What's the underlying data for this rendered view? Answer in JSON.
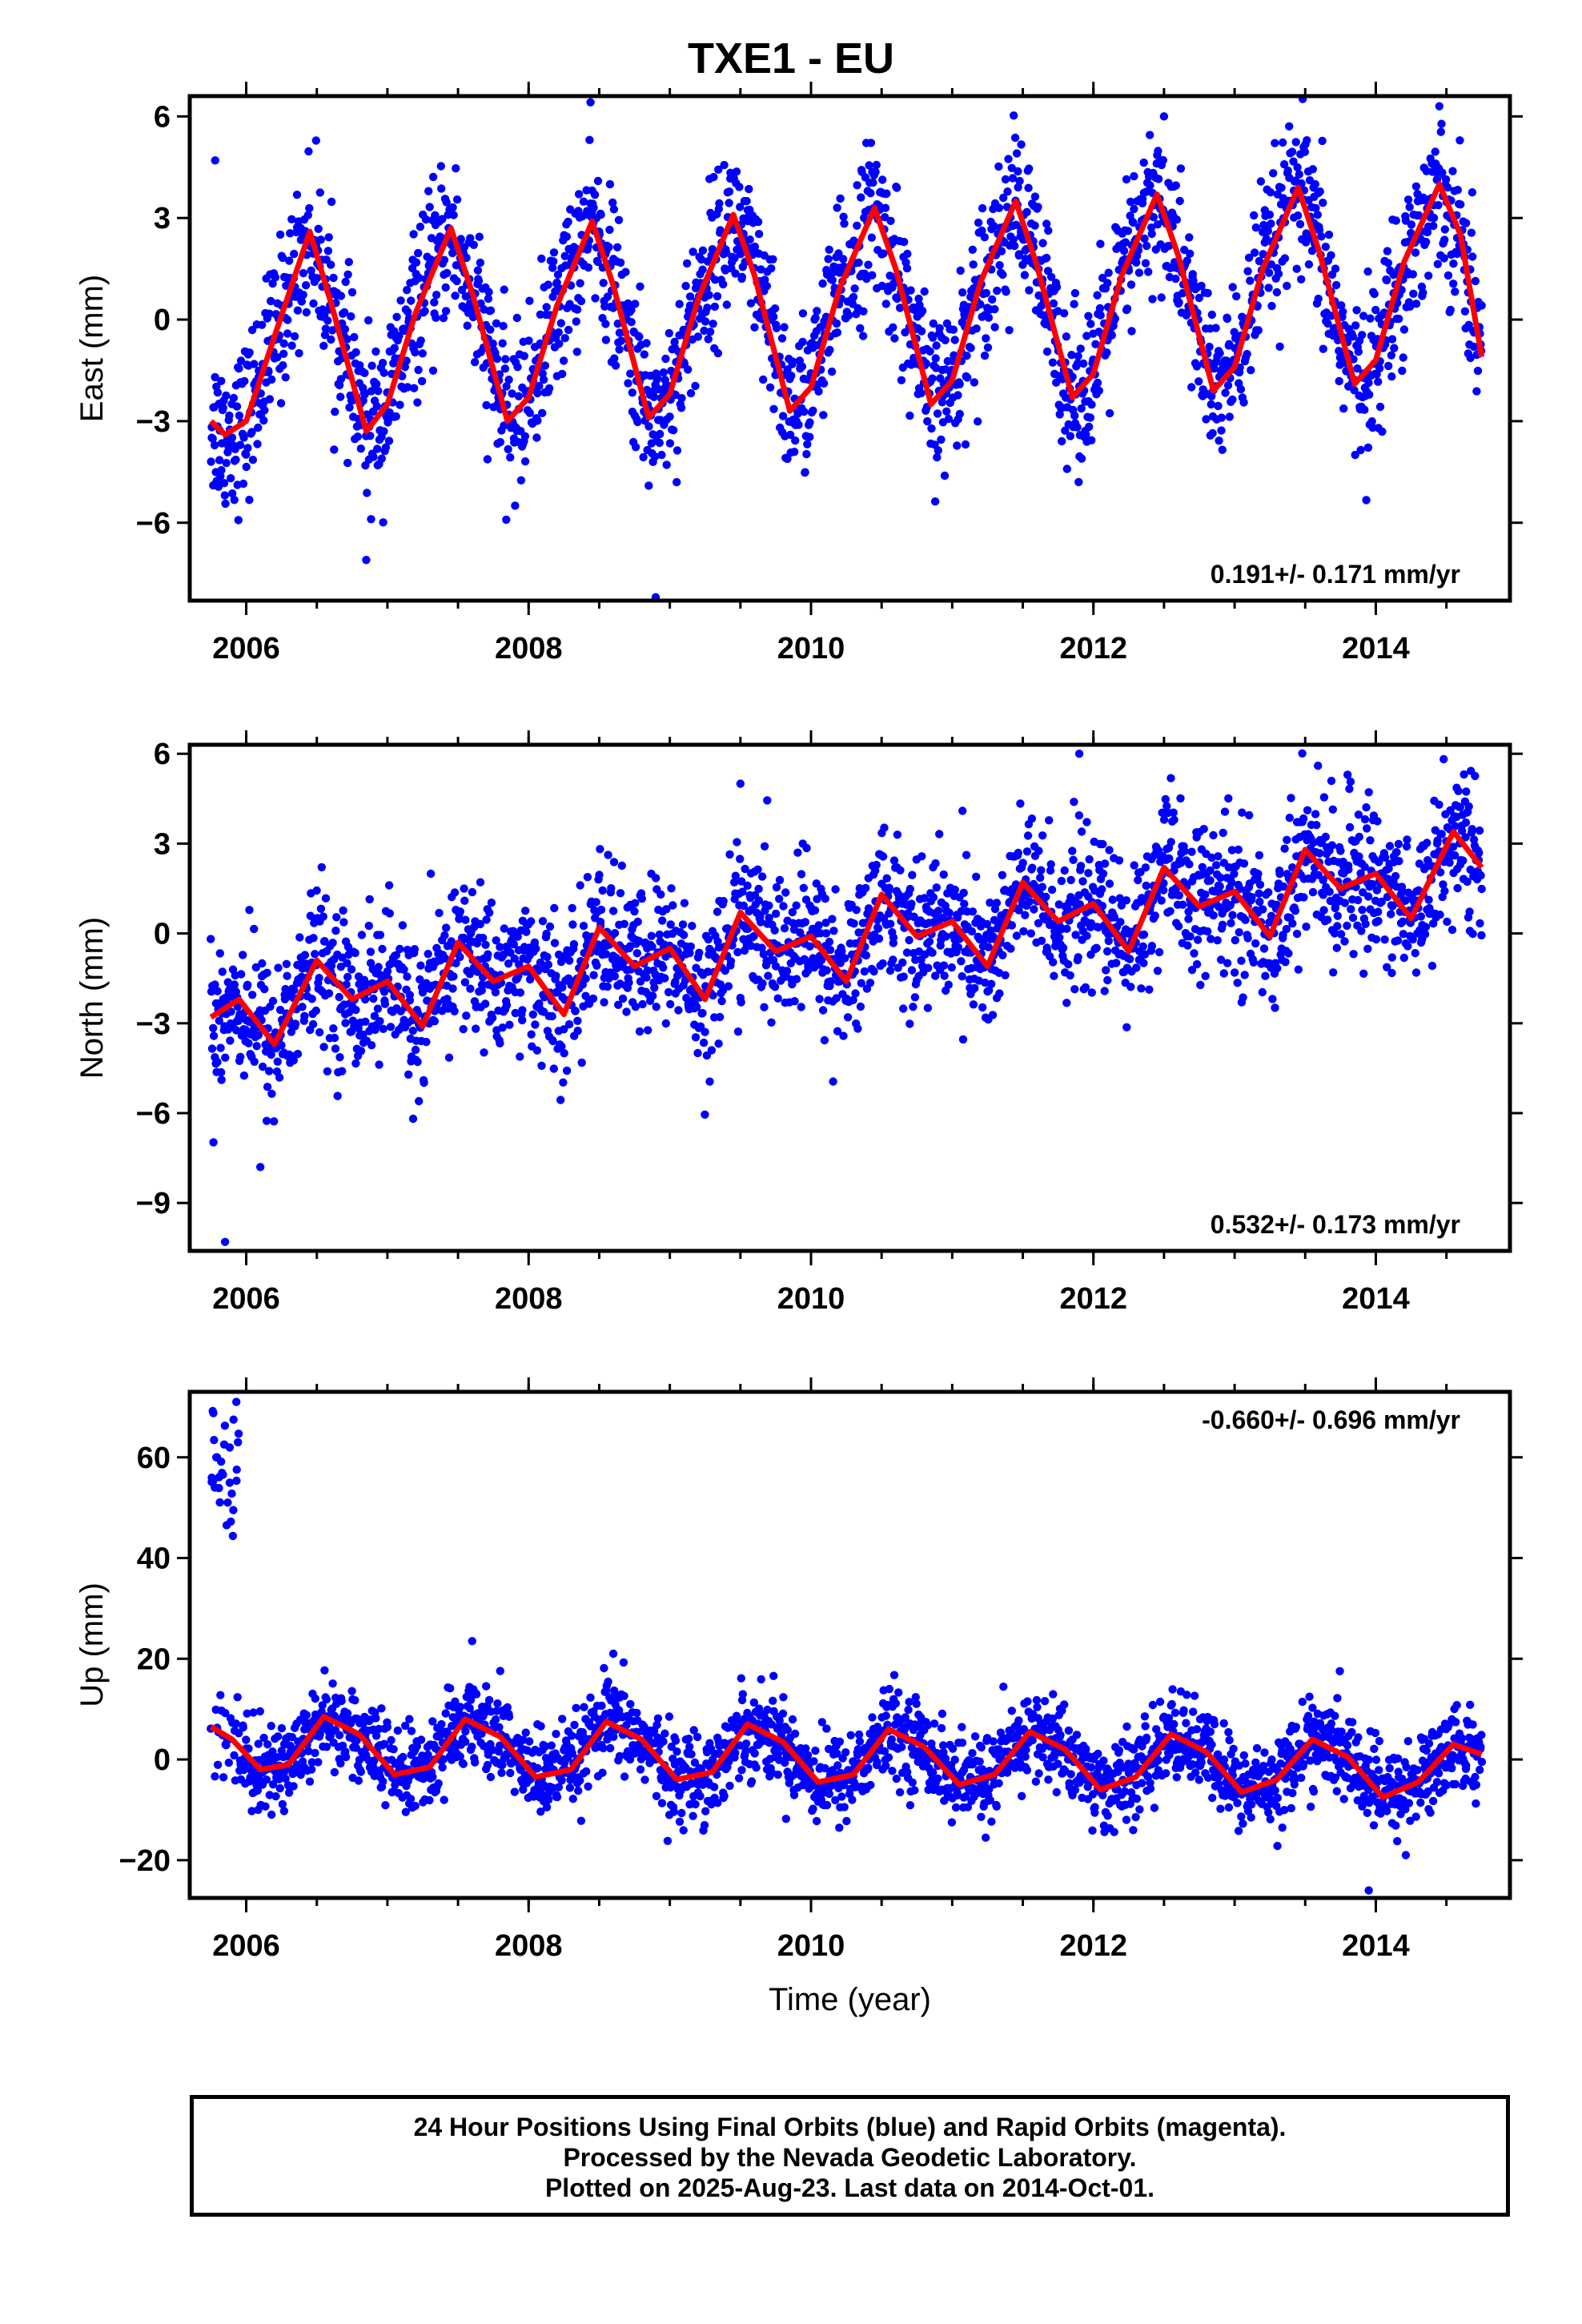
{
  "title": "TXE1 - EU",
  "colors": {
    "points": "#0000ff",
    "fit": "#ff0000",
    "frame": "#000000"
  },
  "chart_data": [
    {
      "type": "scatter",
      "component": "East",
      "ylabel": "East (mm)",
      "xlabel": "",
      "xlim": [
        2005.6,
        2014.95
      ],
      "ylim": [
        -8.3,
        6.6
      ],
      "yticks": [
        6,
        3,
        0,
        -3,
        -6
      ],
      "ytick_labels": [
        "6",
        "3",
        "0",
        "−3",
        "−6"
      ],
      "xticks": [
        2006,
        2008,
        2010,
        2012,
        2014
      ],
      "xtick_labels": [
        "2006",
        "2008",
        "2010",
        "2012",
        "2014"
      ],
      "rate": "0.191+/- 0.171 mm/yr",
      "rate_position": "bottom-right",
      "data_range": [
        2005.75,
        2014.75
      ],
      "fit_curve": {
        "x": [
          2005.75,
          2005.85,
          2006.0,
          2006.2,
          2006.45,
          2006.6,
          2006.85,
          2007.0,
          2007.2,
          2007.45,
          2007.6,
          2007.85,
          2008.0,
          2008.2,
          2008.45,
          2008.6,
          2008.85,
          2009.0,
          2009.2,
          2009.45,
          2009.6,
          2009.85,
          2010.0,
          2010.2,
          2010.45,
          2010.6,
          2010.85,
          2011.0,
          2011.2,
          2011.45,
          2011.6,
          2011.85,
          2012.0,
          2012.2,
          2012.45,
          2012.6,
          2012.85,
          2013.0,
          2013.2,
          2013.45,
          2013.6,
          2013.85,
          2014.0,
          2014.2,
          2014.45,
          2014.6,
          2014.75
        ],
        "y": [
          -3.0,
          -3.4,
          -3.0,
          -0.5,
          2.6,
          0.5,
          -3.3,
          -2.5,
          0.2,
          2.7,
          0.8,
          -3.0,
          -2.3,
          0.4,
          2.9,
          1.0,
          -2.9,
          -2.2,
          0.6,
          3.1,
          1.3,
          -2.7,
          -2.0,
          0.9,
          3.3,
          1.5,
          -2.5,
          -1.8,
          1.1,
          3.5,
          1.6,
          -2.3,
          -1.6,
          1.3,
          3.7,
          1.9,
          -2.1,
          -1.4,
          1.5,
          3.9,
          2.0,
          -1.9,
          -1.2,
          1.7,
          4.0,
          2.5,
          -1.1
        ]
      },
      "points": {
        "count": 2400,
        "amplitude": 3.2,
        "noise": 1.15,
        "outliers": [
          [
            2008.9,
            -8.2
          ],
          [
            2006.85,
            -7.1
          ],
          [
            2005.78,
            4.7
          ],
          [
            2014.45,
            6.3
          ],
          [
            2012.5,
            6.0
          ]
        ]
      }
    },
    {
      "type": "scatter",
      "component": "North",
      "ylabel": "North (mm)",
      "xlabel": "",
      "xlim": [
        2005.6,
        2014.95
      ],
      "ylim": [
        -10.6,
        6.3
      ],
      "yticks": [
        6,
        3,
        0,
        -3,
        -6,
        -9
      ],
      "ytick_labels": [
        "6",
        "3",
        "0",
        "−3",
        "−6",
        "−9"
      ],
      "xticks": [
        2006,
        2008,
        2010,
        2012,
        2014
      ],
      "xtick_labels": [
        "2006",
        "2008",
        "2010",
        "2012",
        "2014"
      ],
      "rate": "0.532+/- 0.173 mm/yr",
      "rate_position": "bottom-right",
      "data_range": [
        2005.75,
        2014.75
      ],
      "fit_curve": {
        "x": [
          2005.75,
          2005.95,
          2006.2,
          2006.5,
          2006.75,
          2007.0,
          2007.25,
          2007.5,
          2007.75,
          2008.0,
          2008.25,
          2008.5,
          2008.75,
          2009.0,
          2009.25,
          2009.5,
          2009.75,
          2010.0,
          2010.25,
          2010.5,
          2010.75,
          2011.0,
          2011.25,
          2011.5,
          2011.75,
          2012.0,
          2012.25,
          2012.5,
          2012.75,
          2013.0,
          2013.25,
          2013.5,
          2013.75,
          2014.0,
          2014.25,
          2014.55,
          2014.75
        ],
        "y": [
          -2.8,
          -2.2,
          -3.7,
          -0.9,
          -2.2,
          -1.6,
          -3.1,
          -0.3,
          -1.6,
          -1.1,
          -2.7,
          0.2,
          -1.1,
          -0.5,
          -2.2,
          0.7,
          -0.6,
          -0.1,
          -1.6,
          1.3,
          -0.1,
          0.4,
          -1.1,
          1.7,
          0.4,
          1.0,
          -0.6,
          2.2,
          0.9,
          1.4,
          -0.1,
          2.8,
          1.5,
          2.0,
          0.5,
          3.4,
          2.2
        ]
      },
      "points": {
        "count": 2400,
        "amplitude": 1.2,
        "noise": 1.25,
        "outliers": [
          [
            2005.85,
            -10.3
          ],
          [
            2006.1,
            -7.8
          ],
          [
            2011.9,
            6.0
          ],
          [
            2009.5,
            5.0
          ],
          [
            2013.8,
            5.3
          ]
        ]
      }
    },
    {
      "type": "scatter",
      "component": "Up",
      "ylabel": "Up (mm)",
      "xlabel": "Time (year)",
      "xlim": [
        2005.6,
        2014.95
      ],
      "ylim": [
        -27.5,
        73
      ],
      "yticks": [
        60,
        40,
        20,
        0,
        -20
      ],
      "ytick_labels": [
        "60",
        "40",
        "20",
        "0",
        "−20"
      ],
      "xticks": [
        2006,
        2008,
        2010,
        2012,
        2014
      ],
      "xtick_labels": [
        "2006",
        "2008",
        "2010",
        "2012",
        "2014"
      ],
      "rate": "-0.660+/- 0.696 mm/yr",
      "rate_position": "top-right",
      "data_range": [
        2005.75,
        2014.75
      ],
      "fit_curve": {
        "x": [
          2005.75,
          2005.9,
          2006.1,
          2006.3,
          2006.55,
          2006.8,
          2007.05,
          2007.3,
          2007.55,
          2007.8,
          2008.05,
          2008.3,
          2008.55,
          2008.8,
          2009.05,
          2009.3,
          2009.55,
          2009.8,
          2010.05,
          2010.3,
          2010.55,
          2010.8,
          2011.05,
          2011.3,
          2011.55,
          2011.8,
          2012.05,
          2012.3,
          2012.55,
          2012.8,
          2013.05,
          2013.3,
          2013.55,
          2013.8,
          2014.05,
          2014.3,
          2014.55,
          2014.75
        ],
        "y": [
          6.5,
          4.0,
          -2.0,
          -1.0,
          8.5,
          5.0,
          -3.0,
          -1.5,
          8.0,
          4.5,
          -3.5,
          -2.0,
          7.5,
          4.0,
          -4.0,
          -2.5,
          7.0,
          3.5,
          -4.5,
          -3.0,
          6.0,
          2.5,
          -5.0,
          -3.0,
          5.5,
          2.0,
          -6.0,
          -3.5,
          5.0,
          1.5,
          -6.5,
          -4.0,
          4.0,
          0.5,
          -7.5,
          -4.5,
          3.0,
          1.0
        ]
      },
      "points": {
        "count": 2400,
        "amplitude": 6.5,
        "noise": 4.3,
        "cluster": {
          "x": [
            2005.75,
            2005.95
          ],
          "y": [
            43,
            70
          ]
        },
        "outliers": [
          [
            2013.95,
            -26
          ],
          [
            2007.6,
            23.5
          ],
          [
            2008.6,
            21
          ],
          [
            2005.93,
            71
          ]
        ]
      }
    }
  ],
  "footer": {
    "line1": "24 Hour Positions Using Final Orbits (blue) and Rapid Orbits (magenta).",
    "line2": "Processed by the Nevada Geodetic Laboratory.",
    "line3": "Plotted on 2025-Aug-23. Last data on 2014-Oct-01."
  }
}
